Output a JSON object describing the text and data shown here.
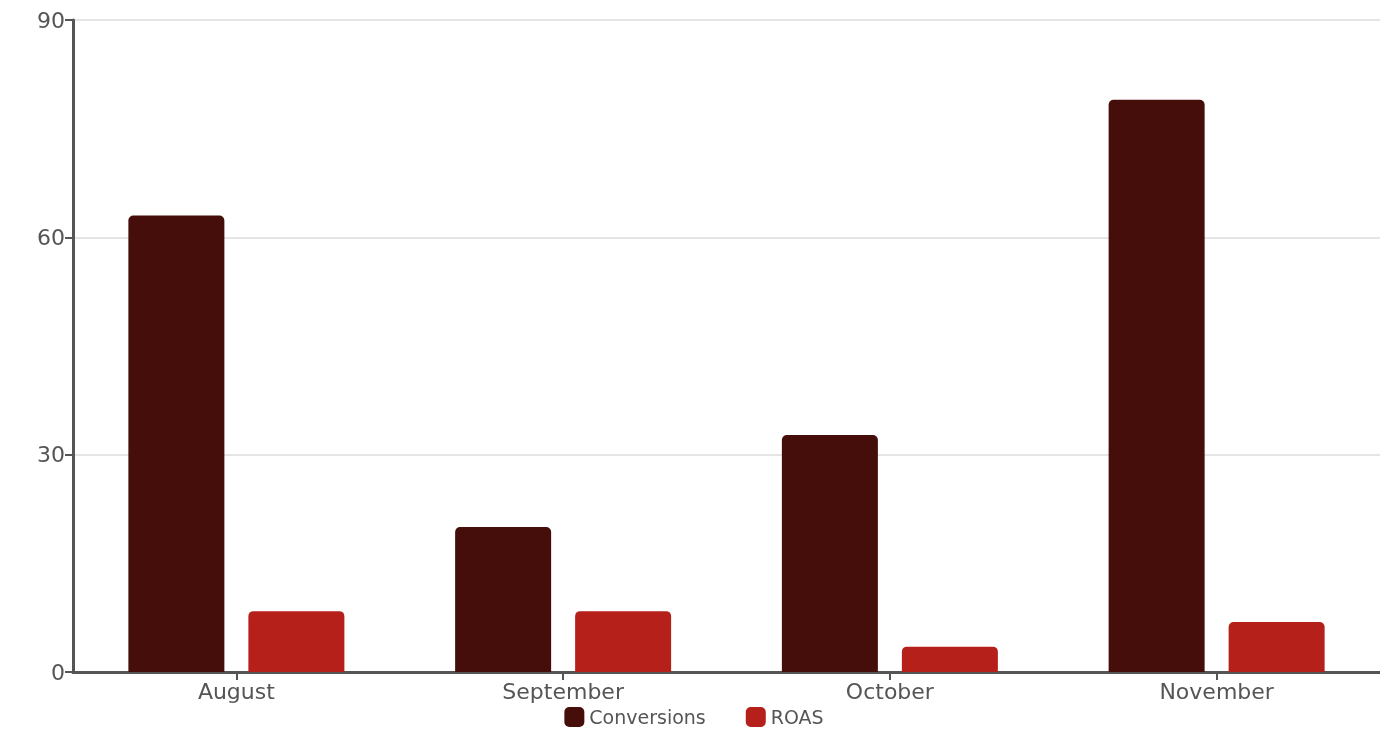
{
  "chart_data": {
    "type": "bar",
    "categories": [
      "August",
      "September",
      "October",
      "November"
    ],
    "series": [
      {
        "name": "Conversions",
        "color": "#450e0b",
        "values": [
          63,
          20,
          32.7,
          79
        ]
      },
      {
        "name": "ROAS",
        "color": "#b5201a",
        "values": [
          8.4,
          8.4,
          3.5,
          6.9
        ]
      }
    ],
    "ylim": [
      0,
      90
    ],
    "yticks": [
      0,
      30,
      60,
      90
    ],
    "grid": "y",
    "legend": "bottom"
  }
}
